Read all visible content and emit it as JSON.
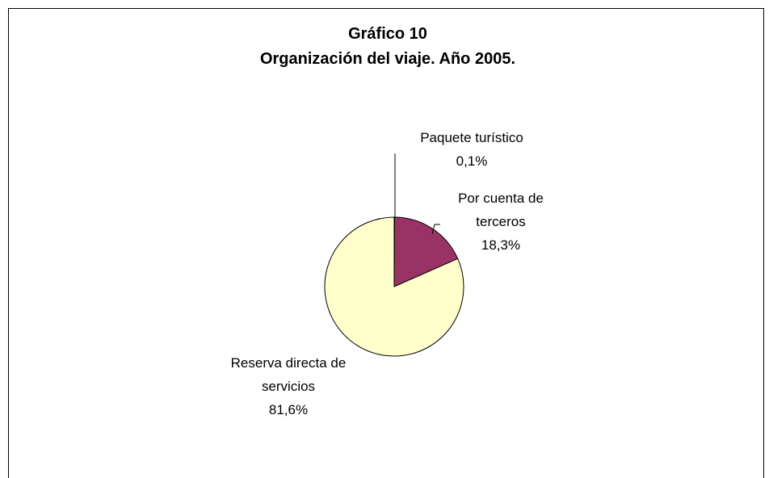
{
  "chart_data": {
    "type": "pie",
    "title": "Gráfico 10",
    "subtitle": "Organización del viaje. Año 2005.",
    "categories": [
      "Paquete turístico",
      "Por cuenta de terceros",
      "Reserva directa de servicios"
    ],
    "values": [
      0.1,
      18.3,
      81.6
    ],
    "value_labels": [
      "0,1%",
      "18,3%",
      "81,6%"
    ],
    "colors": [
      "#9999ff",
      "#993366",
      "#ffffcc"
    ]
  }
}
